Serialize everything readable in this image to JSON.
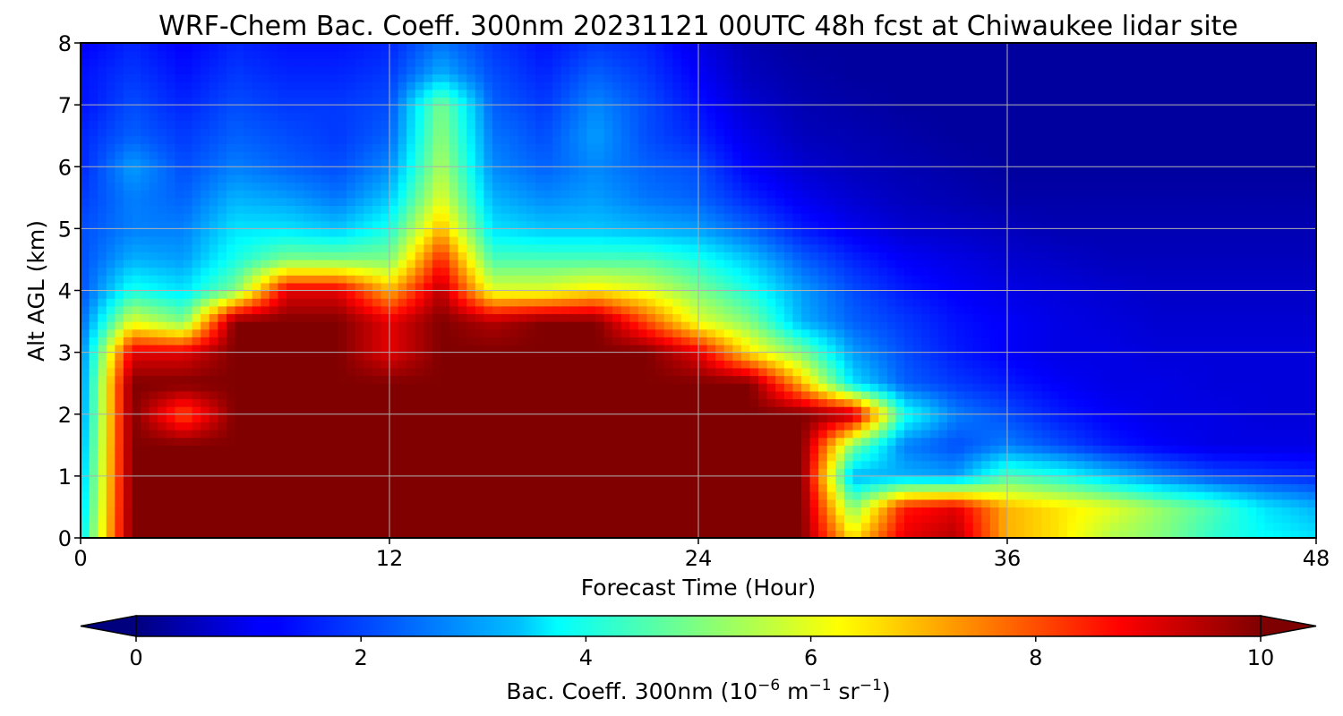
{
  "chart_data": {
    "type": "heatmap",
    "title": "WRF-Chem Bac. Coeff. 300nm  20231121 00UTC 48h fcst at Chiwaukee lidar site",
    "xlabel": "Forecast Time (Hour)",
    "ylabel": "Alt AGL (km)",
    "xlim": [
      0,
      48
    ],
    "ylim": [
      0,
      8
    ],
    "x_ticks": [
      "0",
      "12",
      "24",
      "36",
      "48"
    ],
    "y_ticks": [
      "0",
      "1",
      "2",
      "3",
      "4",
      "5",
      "6",
      "7",
      "8"
    ],
    "grid": true,
    "colormap": "jet",
    "colorbar": {
      "label_prefix": "Bac. Coeff. 300nm  (10",
      "exp1": "−6",
      "mid1": " m",
      "exp2": "−1",
      "mid2": " sr",
      "exp3": "−1",
      "suffix": ")",
      "range": [
        0,
        10
      ],
      "extend": "both",
      "ticks": [
        "0",
        "2",
        "4",
        "6",
        "8",
        "10"
      ]
    },
    "x": [
      0,
      2,
      4,
      6,
      8,
      10,
      12,
      14,
      16,
      18,
      20,
      22,
      24,
      26,
      28,
      30,
      32,
      34,
      36,
      38,
      40,
      42,
      44,
      46,
      48
    ],
    "y": [
      0,
      0.5,
      1,
      1.5,
      2,
      2.5,
      3,
      3.5,
      4,
      4.5,
      5,
      5.5,
      6,
      6.5,
      7,
      7.5,
      8
    ],
    "z": [
      [
        3.5,
        10,
        10,
        10,
        10,
        10,
        10,
        10,
        10,
        10,
        10,
        10,
        10,
        10,
        10,
        6.5,
        9,
        9.5,
        7,
        6.5,
        5.5,
        5,
        4.2,
        3.8,
        3.5
      ],
      [
        3.2,
        10,
        10,
        10,
        10,
        10,
        10,
        10,
        10,
        10,
        10,
        10,
        10,
        10,
        10,
        5,
        8.5,
        9,
        7,
        6.5,
        6,
        5.2,
        4.5,
        3.5,
        3
      ],
      [
        3.0,
        10,
        10,
        10,
        10,
        10,
        10,
        10,
        10,
        10,
        10,
        10,
        10,
        10,
        10,
        3,
        3,
        2.8,
        4.5,
        4,
        3.2,
        2.5,
        2,
        1.8,
        1.6
      ],
      [
        2.8,
        10,
        10,
        10,
        10,
        10,
        10,
        10,
        10,
        10,
        10,
        10,
        10,
        10,
        10,
        5,
        2.5,
        2,
        2.5,
        2,
        1.5,
        1.2,
        1,
        1,
        1
      ],
      [
        2.6,
        10,
        8,
        10,
        10,
        10,
        10,
        10,
        10,
        10,
        10,
        10,
        10,
        10,
        10,
        9.5,
        4,
        2.5,
        2,
        1.5,
        1.2,
        1,
        1,
        0.9,
        0.9
      ],
      [
        2.5,
        10,
        10,
        10,
        10,
        10,
        10,
        10,
        10,
        10,
        10,
        10,
        10,
        10,
        7,
        3.5,
        2.2,
        1.8,
        1.5,
        1.2,
        1,
        1,
        0.9,
        0.9,
        0.9
      ],
      [
        2.4,
        9,
        9,
        10,
        10,
        10,
        9,
        10,
        10,
        10,
        10,
        10,
        9,
        6.5,
        5,
        2.8,
        2,
        1.5,
        1.2,
        1,
        1,
        0.9,
        0.9,
        0.9,
        0.9
      ],
      [
        2.2,
        6,
        5,
        10,
        10,
        10,
        9,
        10,
        9.5,
        10,
        10,
        8,
        6,
        5,
        3,
        2.2,
        1.8,
        1.4,
        1.2,
        1,
        0.9,
        0.8,
        0.8,
        0.8,
        0.8
      ],
      [
        2.0,
        4,
        3.5,
        5,
        9,
        9,
        7,
        9.5,
        6,
        6,
        6.5,
        6,
        5,
        4,
        2.8,
        2,
        1.5,
        1.2,
        1,
        0.9,
        0.8,
        0.7,
        0.7,
        0.7,
        0.7
      ],
      [
        2.0,
        3,
        2.8,
        4,
        5,
        5,
        5,
        8.5,
        4.5,
        4.5,
        4.5,
        4.5,
        4,
        3.2,
        2.2,
        1.6,
        1.2,
        1,
        0.8,
        0.7,
        0.6,
        0.6,
        0.6,
        0.6,
        0.6
      ],
      [
        2.0,
        2.5,
        2.5,
        3.5,
        3.5,
        3.2,
        4,
        7,
        3.5,
        3.2,
        3.2,
        3,
        2.8,
        2.2,
        1.5,
        1.1,
        0.8,
        0.7,
        0.6,
        0.5,
        0.5,
        0.5,
        0.5,
        0.5,
        0.5
      ],
      [
        1.8,
        2.5,
        2.2,
        3,
        2.8,
        2.4,
        3.2,
        6,
        3,
        2.6,
        2.8,
        2.4,
        2.2,
        1.6,
        1.1,
        0.8,
        0.6,
        0.5,
        0.4,
        0.4,
        0.4,
        0.4,
        0.4,
        0.4,
        0.4
      ],
      [
        1.6,
        2.8,
        2,
        2.5,
        2.2,
        2,
        2.6,
        5.5,
        2.6,
        2.2,
        2.6,
        2.2,
        2,
        1.2,
        0.8,
        0.6,
        0.5,
        0.4,
        0.3,
        0.3,
        0.3,
        0.3,
        0.3,
        0.3,
        0.3
      ],
      [
        1.6,
        2.2,
        1.8,
        2.2,
        2,
        1.8,
        2.2,
        5.2,
        2.4,
        2,
        2.8,
        2,
        1.6,
        1,
        0.6,
        0.5,
        0.4,
        0.3,
        0.3,
        0.3,
        0.3,
        0.3,
        0.3,
        0.3,
        0.3
      ],
      [
        1.4,
        2,
        1.6,
        2,
        1.8,
        1.8,
        2,
        5,
        2.2,
        1.8,
        2.6,
        2,
        1.4,
        0.8,
        0.5,
        0.4,
        0.3,
        0.3,
        0.3,
        0.3,
        0.3,
        0.3,
        0.3,
        0.3,
        0.3
      ],
      [
        1.4,
        1.8,
        1.4,
        1.8,
        1.6,
        1.6,
        1.8,
        3,
        2,
        1.6,
        2.2,
        1.8,
        1.2,
        0.6,
        0.4,
        0.3,
        0.3,
        0.3,
        0.3,
        0.3,
        0.3,
        0.3,
        0.3,
        0.3,
        0.3
      ],
      [
        1.2,
        1.6,
        1.2,
        1.6,
        1.4,
        1.4,
        1.6,
        2.4,
        1.8,
        1.4,
        1.8,
        1.6,
        1,
        0.5,
        0.3,
        0.3,
        0.3,
        0.3,
        0.3,
        0.3,
        0.3,
        0.3,
        0.3,
        0.3,
        0.3
      ]
    ]
  }
}
